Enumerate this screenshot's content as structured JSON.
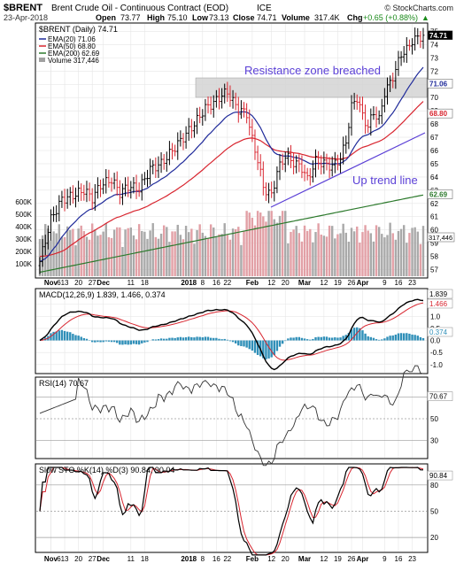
{
  "header": {
    "symbol": "$BRENT",
    "name": "Brent Crude Oil - Continuous Contract (EOD)",
    "exchange": "ICE",
    "watermark": "© StockCharts.com",
    "date": "23-Apr-2018",
    "open_label": "Open",
    "open": "73.77",
    "high_label": "High",
    "high": "75.10",
    "low_label": "Low",
    "low": "73.13",
    "close_label": "Close",
    "close": "74.71",
    "volume_label": "Volume",
    "volume": "317.4K",
    "chg_label": "Chg",
    "chg": "+0.65 (+0.88%)",
    "chg_arrow": "▲"
  },
  "price_panel": {
    "legend_title": "$BRENT (Daily) 74.71",
    "legend": [
      {
        "label": "EMA(20) 71.06",
        "color": "#1f2a9a"
      },
      {
        "label": "EMA(50) 68.80",
        "color": "#d8252f"
      },
      {
        "label": "EMA(200) 62.69",
        "color": "#2d7a2d"
      },
      {
        "label": "Volume 317,446",
        "color": "#a0a0a0"
      }
    ],
    "y_ticks": [
      "75",
      "74",
      "73",
      "72",
      "71",
      "70",
      "69",
      "68",
      "67",
      "66",
      "65",
      "64",
      "63",
      "62",
      "61",
      "60",
      "59",
      "58",
      "57"
    ],
    "y_range": [
      56.5,
      75.5
    ],
    "price_tags": [
      {
        "label": "74.71",
        "value": 74.71,
        "fill": "#000000",
        "text": "#ffffff"
      },
      {
        "label": "71.06",
        "value": 71.06,
        "fill": "#ffffff",
        "text": "#1f2a9a"
      },
      {
        "label": "68.80",
        "value": 68.8,
        "fill": "#ffffff",
        "text": "#d8252f"
      },
      {
        "label": "62.69",
        "value": 62.69,
        "fill": "#ffffff",
        "text": "#2d7a2d"
      }
    ],
    "volume_tag": "317,446",
    "volume_ticks": [
      "600K",
      "500K",
      "400K",
      "300K",
      "200K",
      "100K"
    ],
    "annotations": {
      "resistance": "Resistance zone breached",
      "trend": "Up trend line"
    },
    "colors": {
      "up": "#000000",
      "down": "#d8252f",
      "zone": "#d4d4d4",
      "annotation": "#5a3fd6"
    }
  },
  "macd_panel": {
    "label": "MACD(12,26,9) 1.839, 1.466, 0.374",
    "y_ticks": [
      "1.5",
      "1.0",
      "0.5",
      "0.0",
      "-0.5",
      "-1.0"
    ],
    "tags": [
      {
        "label": "1.839",
        "value": 1.839,
        "color": "#000000"
      },
      {
        "label": "1.466",
        "value": 1.466,
        "color": "#d8252f"
      },
      {
        "label": "0.374",
        "value": 0.374,
        "color": "#2f8fb8"
      }
    ],
    "colors": {
      "macd": "#000000",
      "signal": "#d8252f",
      "hist": "#2f8fb8"
    }
  },
  "rsi_panel": {
    "label": "RSI(14) 70.67",
    "y_ticks": [
      "70",
      "50",
      "30"
    ],
    "tag": "70.67"
  },
  "sto_panel": {
    "label": "Slow STO %K(14) %D(3) 90.84, 90.04",
    "y_ticks": [
      "80",
      "50",
      "20"
    ],
    "tag": "90.84"
  },
  "x_axis": [
    {
      "label": "Nov",
      "i": 4,
      "bold": true
    },
    {
      "label": "6",
      "i": 4,
      "bold": false
    },
    {
      "label": "13",
      "i": 9,
      "bold": false
    },
    {
      "label": "20",
      "i": 14,
      "bold": false
    },
    {
      "label": "27",
      "i": 19,
      "bold": false
    },
    {
      "label": "Dec",
      "i": 23,
      "bold": true
    },
    {
      "label": "11",
      "i": 33,
      "bold": false
    },
    {
      "label": "18",
      "i": 38,
      "bold": false
    },
    {
      "label": "2018",
      "i": 54,
      "bold": true
    },
    {
      "label": "8",
      "i": 59,
      "bold": false
    },
    {
      "label": "16",
      "i": 64,
      "bold": false
    },
    {
      "label": "22",
      "i": 68,
      "bold": false
    },
    {
      "label": "Feb",
      "i": 77,
      "bold": true
    },
    {
      "label": "12",
      "i": 84,
      "bold": false
    },
    {
      "label": "20",
      "i": 89,
      "bold": false
    },
    {
      "label": "Mar",
      "i": 96,
      "bold": true
    },
    {
      "label": "12",
      "i": 103,
      "bold": false
    },
    {
      "label": "19",
      "i": 108,
      "bold": false
    },
    {
      "label": "26",
      "i": 113,
      "bold": false
    },
    {
      "label": "Apr",
      "i": 117,
      "bold": true
    },
    {
      "label": "9",
      "i": 125,
      "bold": false
    },
    {
      "label": "16",
      "i": 130,
      "bold": false
    },
    {
      "label": "23",
      "i": 135,
      "bold": false
    }
  ]
}
